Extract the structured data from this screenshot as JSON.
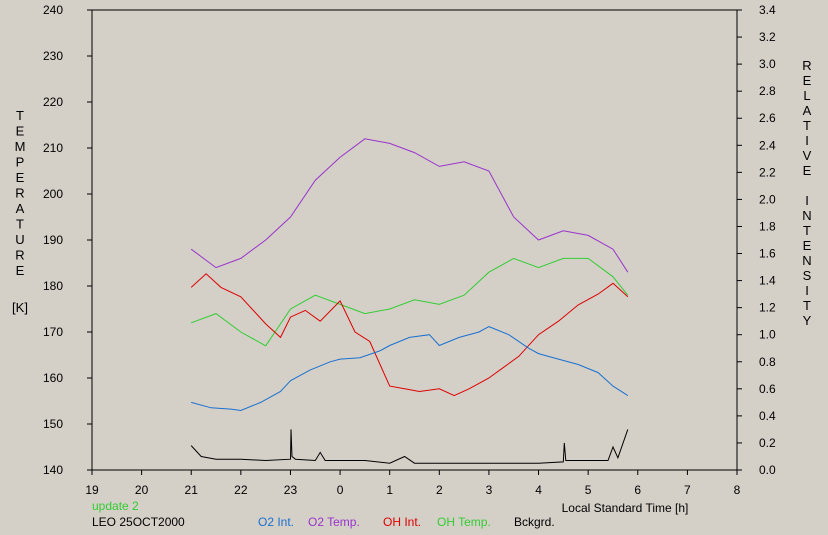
{
  "chart_data": {
    "type": "line",
    "xlabel": "Local Standard Time [h]",
    "x_ticks": [
      "19",
      "20",
      "21",
      "22",
      "23",
      "0",
      "1",
      "2",
      "3",
      "4",
      "5",
      "6",
      "7",
      "8"
    ],
    "x_range": [
      19,
      32
    ],
    "left_axis": {
      "label_letters": [
        "T",
        "E",
        "M",
        "P",
        "E",
        "R",
        "A",
        "T",
        "U",
        "R",
        "E"
      ],
      "unit": "[K]",
      "range": [
        140,
        240
      ],
      "ticks": [
        "140",
        "150",
        "160",
        "170",
        "180",
        "190",
        "200",
        "210",
        "220",
        "230",
        "240"
      ]
    },
    "right_axis": {
      "label_words": [
        [
          "R",
          "E",
          "L",
          "A",
          "T",
          "I",
          "V",
          "E"
        ],
        [
          "I",
          "N",
          "T",
          "E",
          "N",
          "S",
          "I",
          "T",
          "Y"
        ]
      ],
      "range": [
        0,
        3.4
      ],
      "ticks": [
        "0.0",
        "0.2",
        "0.4",
        "0.6",
        "0.8",
        "1.0",
        "1.2",
        "1.4",
        "1.6",
        "1.8",
        "2.0",
        "2.2",
        "2.4",
        "2.6",
        "2.8",
        "3.0",
        "3.2",
        "3.4"
      ]
    },
    "series": [
      {
        "name": "O2 Temp.",
        "color": "#9933cc",
        "axis": "left",
        "x": [
          21.0,
          21.5,
          22.0,
          22.5,
          23.0,
          23.5,
          24.0,
          24.5,
          25.0,
          25.5,
          26.0,
          26.5,
          27.0,
          27.5,
          28.0,
          28.5,
          29.0,
          29.5,
          29.8
        ],
        "y": [
          188,
          184,
          186,
          190,
          195,
          203,
          208,
          212,
          211,
          209,
          206,
          207,
          205,
          195,
          190,
          192,
          191,
          188,
          183
        ]
      },
      {
        "name": "OH Temp.",
        "color": "#33cc33",
        "axis": "left",
        "x": [
          21.0,
          21.5,
          22.0,
          22.5,
          23.0,
          23.5,
          24.0,
          24.5,
          25.0,
          25.5,
          26.0,
          26.5,
          27.0,
          27.5,
          28.0,
          28.5,
          29.0,
          29.5,
          29.8
        ],
        "y": [
          172,
          174,
          170,
          167,
          175,
          178,
          176,
          174,
          175,
          177,
          176,
          178,
          183,
          186,
          184,
          186,
          186,
          182,
          178
        ]
      },
      {
        "name": "OH Int.",
        "color": "#dd0000",
        "axis": "right",
        "x": [
          21.0,
          21.3,
          21.6,
          22.0,
          22.5,
          22.8,
          23.0,
          23.3,
          23.6,
          24.0,
          24.3,
          24.6,
          25.0,
          25.3,
          25.6,
          26.0,
          26.3,
          26.6,
          27.0,
          27.3,
          27.6,
          28.0,
          28.4,
          28.8,
          29.2,
          29.5,
          29.8
        ],
        "y": [
          1.35,
          1.45,
          1.35,
          1.28,
          1.08,
          0.98,
          1.13,
          1.18,
          1.1,
          1.25,
          1.02,
          0.95,
          0.62,
          0.6,
          0.58,
          0.6,
          0.55,
          0.6,
          0.68,
          0.76,
          0.84,
          1.0,
          1.1,
          1.22,
          1.3,
          1.38,
          1.28
        ]
      },
      {
        "name": "O2 Int.",
        "color": "#1a70d0",
        "axis": "right",
        "x": [
          21.0,
          21.4,
          21.8,
          22.0,
          22.4,
          22.8,
          23.0,
          23.4,
          23.8,
          24.0,
          24.4,
          24.8,
          25.0,
          25.4,
          25.8,
          26.0,
          26.4,
          26.8,
          27.0,
          27.4,
          27.8,
          28.0,
          28.4,
          28.8,
          29.2,
          29.5,
          29.8
        ],
        "y": [
          0.5,
          0.46,
          0.45,
          0.44,
          0.5,
          0.58,
          0.66,
          0.74,
          0.8,
          0.82,
          0.83,
          0.88,
          0.92,
          0.98,
          1.0,
          0.92,
          0.98,
          1.02,
          1.06,
          1.0,
          0.9,
          0.86,
          0.82,
          0.78,
          0.72,
          0.62,
          0.55
        ]
      },
      {
        "name": "Bckgrd.",
        "color": "#000000",
        "axis": "right",
        "x": [
          21.0,
          21.2,
          21.5,
          22.0,
          22.5,
          23.0,
          23.01,
          23.03,
          23.1,
          23.5,
          23.6,
          23.7,
          24.0,
          24.5,
          25.0,
          25.3,
          25.5,
          26.0,
          26.5,
          27.0,
          27.5,
          28.0,
          28.5,
          28.52,
          28.55,
          29.0,
          29.4,
          29.5,
          29.6,
          29.8
        ],
        "y": [
          0.18,
          0.1,
          0.08,
          0.08,
          0.07,
          0.08,
          0.3,
          0.1,
          0.08,
          0.07,
          0.13,
          0.07,
          0.07,
          0.07,
          0.05,
          0.1,
          0.05,
          0.05,
          0.05,
          0.05,
          0.05,
          0.05,
          0.06,
          0.2,
          0.07,
          0.07,
          0.07,
          0.17,
          0.09,
          0.3
        ]
      }
    ]
  },
  "footer": {
    "update": "update 2",
    "station": "LEO 25OCT2000",
    "legend": [
      "O2 Int.",
      "O2 Temp.",
      "OH Int.",
      "OH Temp.",
      "Bckgrd."
    ]
  },
  "colors": {
    "background": "#d4d0c8",
    "update_text": "#33cc33"
  }
}
